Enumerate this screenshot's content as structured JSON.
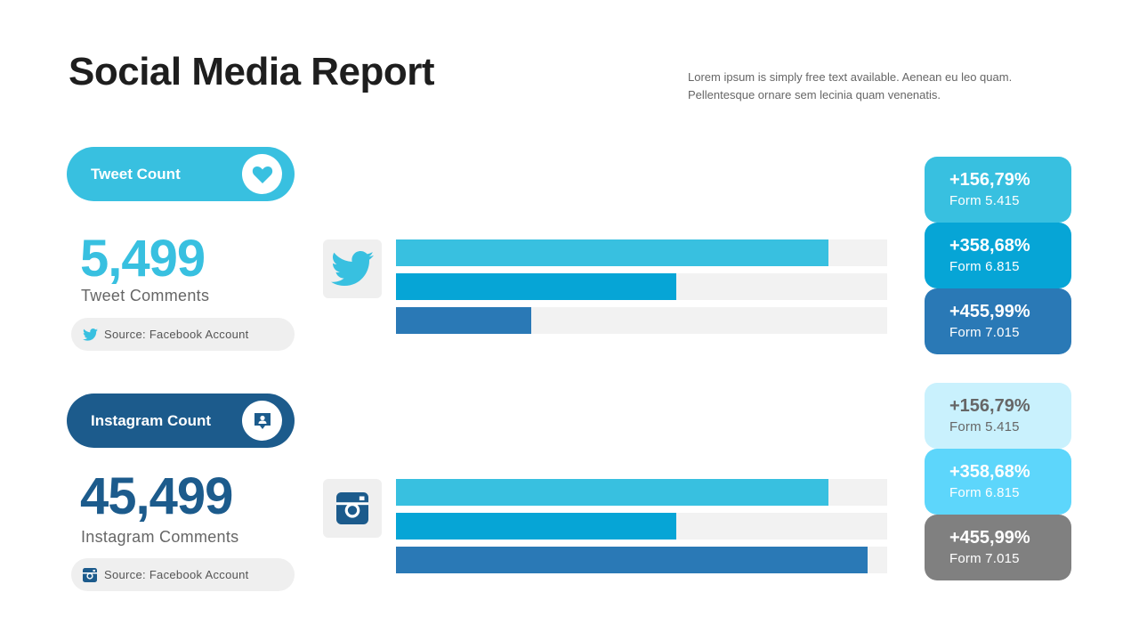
{
  "title": "Social Media Report",
  "description": [
    "Lorem ipsum is simply free text available. Aenean eu leo quam.",
    "Pellentesque  ornare sem lecinia  quam venenatis."
  ],
  "colors": {
    "accent_light": "#38c0e0",
    "accent_mid": "#06a5d6",
    "accent_dark": "#2a79b6",
    "navy": "#1c5b8c",
    "track": "#f2f2f2"
  },
  "twitter": {
    "pill_label": "Tweet Count",
    "pill_icon": "heart-icon",
    "count": "5,499",
    "count_label": "Tweet Comments",
    "source_icon": "twitter-icon",
    "source_text": "Source: Facebook Account",
    "cards": [
      {
        "value": "+156,79%",
        "sub": "Form 5.415",
        "bg": "#38c0e0",
        "fg": "#ffffff"
      },
      {
        "value": "+358,68%",
        "sub": "Form 6.815",
        "bg": "#06a5d6",
        "fg": "#ffffff"
      },
      {
        "value": "+455,99%",
        "sub": "Form 7.015",
        "bg": "#2a79b6",
        "fg": "#ffffff"
      }
    ]
  },
  "instagram": {
    "pill_label": "Instagram Count",
    "pill_icon": "user-chat-icon",
    "count": "45,499",
    "count_label": "Instagram Comments",
    "source_icon": "instagram-icon",
    "source_text": "Source: Facebook Account",
    "cards": [
      {
        "value": "+156,79%",
        "sub": "Form 5.415",
        "bg": "#c9f1fd",
        "fg": "#666666"
      },
      {
        "value": "+358,68%",
        "sub": "Form 6.815",
        "bg": "#5dd6fb",
        "fg": "#ffffff"
      },
      {
        "value": "+455,99%",
        "sub": "Form 7.015",
        "bg": "#808080",
        "fg": "#ffffff"
      }
    ]
  },
  "chart_data": [
    {
      "type": "bar",
      "orientation": "horizontal",
      "ylim": [
        0,
        100
      ],
      "values": [
        88,
        57,
        27.5
      ],
      "colors": [
        "#38c0e0",
        "#06a5d6",
        "#2a79b6"
      ]
    },
    {
      "type": "bar",
      "orientation": "horizontal",
      "ylim": [
        0,
        100
      ],
      "values": [
        88,
        57,
        96
      ],
      "colors": [
        "#38c0e0",
        "#06a5d6",
        "#2a79b6"
      ]
    }
  ]
}
